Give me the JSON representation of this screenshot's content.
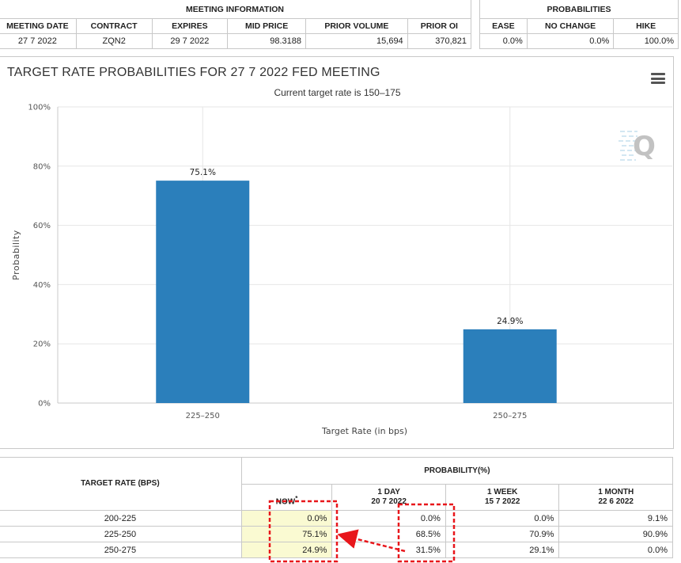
{
  "meeting_info": {
    "group_label": "MEETING INFORMATION",
    "headers": [
      "MEETING DATE",
      "CONTRACT",
      "EXPIRES",
      "MID PRICE",
      "PRIOR VOLUME",
      "PRIOR OI"
    ],
    "row": [
      "27 7 2022",
      "ZQN2",
      "29 7 2022",
      "98.3188",
      "15,694",
      "370,821"
    ]
  },
  "probabilities": {
    "group_label": "PROBABILITIES",
    "headers": [
      "EASE",
      "NO CHANGE",
      "HIKE"
    ],
    "row": [
      "0.0%",
      "0.0%",
      "100.0%"
    ]
  },
  "chart_panel": {
    "title": "TARGET RATE PROBABILITIES FOR 27 7 2022 FED MEETING",
    "subtitle": "Current target rate is 150–175",
    "menu_icon": "hamburger-menu-icon",
    "watermark_icon": "cme-q-logo-icon"
  },
  "chart_data": {
    "type": "bar",
    "title": "TARGET RATE PROBABILITIES FOR 27 7 2022 FED MEETING",
    "subtitle": "Current target rate is 150–175",
    "categories": [
      "225–250",
      "250–275"
    ],
    "values": [
      75.1,
      24.9
    ],
    "data_labels": [
      "75.1%",
      "24.9%"
    ],
    "xlabel": "Target Rate (in bps)",
    "ylabel": "Probability",
    "ylim": [
      0,
      100
    ],
    "yticks": [
      0,
      20,
      40,
      60,
      80,
      100
    ],
    "ytick_labels": [
      "0%",
      "20%",
      "40%",
      "60%",
      "80%",
      "100%"
    ],
    "grid": true,
    "bar_color": "#2b7fbb"
  },
  "rate_table": {
    "col_header": "TARGET RATE (BPS)",
    "group_label": "PROBABILITY(%)",
    "columns": [
      {
        "label": "NOW",
        "marker": "*",
        "date": ""
      },
      {
        "label": "1 DAY",
        "date": "20 7 2022"
      },
      {
        "label": "1 WEEK",
        "date": "15 7 2022"
      },
      {
        "label": "1 MONTH",
        "date": "22 6 2022"
      }
    ],
    "rows": [
      {
        "rate": "200-225",
        "values": [
          "0.0%",
          "0.0%",
          "0.0%",
          "9.1%"
        ]
      },
      {
        "rate": "225-250",
        "values": [
          "75.1%",
          "68.5%",
          "70.9%",
          "90.9%"
        ]
      },
      {
        "rate": "250-275",
        "values": [
          "24.9%",
          "31.5%",
          "29.1%",
          "0.0%"
        ]
      }
    ],
    "now_highlight": "#fafad2"
  },
  "annotation": {
    "color": "#e8161b",
    "style": "dashed boxes around NOW and 1 DAY columns with arrow pointing from 1 DAY to NOW"
  }
}
